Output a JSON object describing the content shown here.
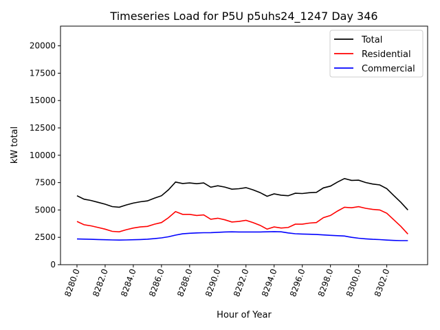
{
  "chart_data": {
    "type": "line",
    "title": "Timeseries Load for P5U p5uhs24_1247  Day 346",
    "xlabel": "Hour of Year",
    "ylabel": "kW total",
    "xlim": [
      8278.83,
      8304.9
    ],
    "ylim": [
      0,
      21800
    ],
    "x_start": 8280,
    "x_step": 0.5,
    "xticks": [
      8280,
      8282,
      8284,
      8286,
      8288,
      8290,
      8292,
      8294,
      8296,
      8298,
      8300,
      8302
    ],
    "xtick_labels": [
      "8280.0",
      "8282.0",
      "8284.0",
      "8286.0",
      "8288.0",
      "8290.0",
      "8292.0",
      "8294.0",
      "8296.0",
      "8298.0",
      "8300.0",
      "8302.0"
    ],
    "yticks": [
      0,
      2500,
      5000,
      7500,
      10000,
      12500,
      15000,
      17500,
      20000
    ],
    "ytick_labels": [
      "0",
      "2500",
      "5000",
      "7500",
      "10000",
      "12500",
      "15000",
      "17500",
      "20000"
    ],
    "legend_position": "top-right",
    "series": [
      {
        "name": "Total",
        "color": "#000000",
        "values": [
          6300,
          5990,
          5870,
          5700,
          5530,
          5310,
          5250,
          5460,
          5630,
          5750,
          5830,
          6080,
          6300,
          6850,
          7550,
          7420,
          7470,
          7400,
          7470,
          7080,
          7210,
          7090,
          6900,
          6940,
          7040,
          6840,
          6590,
          6250,
          6470,
          6350,
          6300,
          6530,
          6500,
          6580,
          6610,
          7020,
          7180,
          7550,
          7870,
          7700,
          7720,
          7510,
          7370,
          7290,
          6950,
          6320,
          5700,
          5000
        ]
      },
      {
        "name": "Residential",
        "color": "#ff0000",
        "values": [
          3950,
          3650,
          3550,
          3400,
          3250,
          3050,
          3000,
          3200,
          3350,
          3450,
          3500,
          3700,
          3850,
          4300,
          4850,
          4600,
          4600,
          4500,
          4550,
          4150,
          4250,
          4100,
          3900,
          3950,
          4050,
          3850,
          3600,
          3250,
          3450,
          3350,
          3400,
          3700,
          3700,
          3800,
          3850,
          4300,
          4500,
          4900,
          5250,
          5200,
          5300,
          5150,
          5050,
          5000,
          4700,
          4100,
          3500,
          2800
        ]
      },
      {
        "name": "Commercial",
        "color": "#0000ff",
        "values": [
          2350,
          2340,
          2320,
          2300,
          2280,
          2260,
          2250,
          2260,
          2280,
          2300,
          2330,
          2380,
          2450,
          2550,
          2700,
          2820,
          2870,
          2900,
          2920,
          2930,
          2960,
          2990,
          3000,
          2990,
          2990,
          2990,
          2990,
          3000,
          3020,
          3000,
          2900,
          2830,
          2800,
          2780,
          2760,
          2720,
          2680,
          2650,
          2620,
          2500,
          2420,
          2360,
          2320,
          2290,
          2250,
          2220,
          2200,
          2200
        ]
      }
    ]
  }
}
